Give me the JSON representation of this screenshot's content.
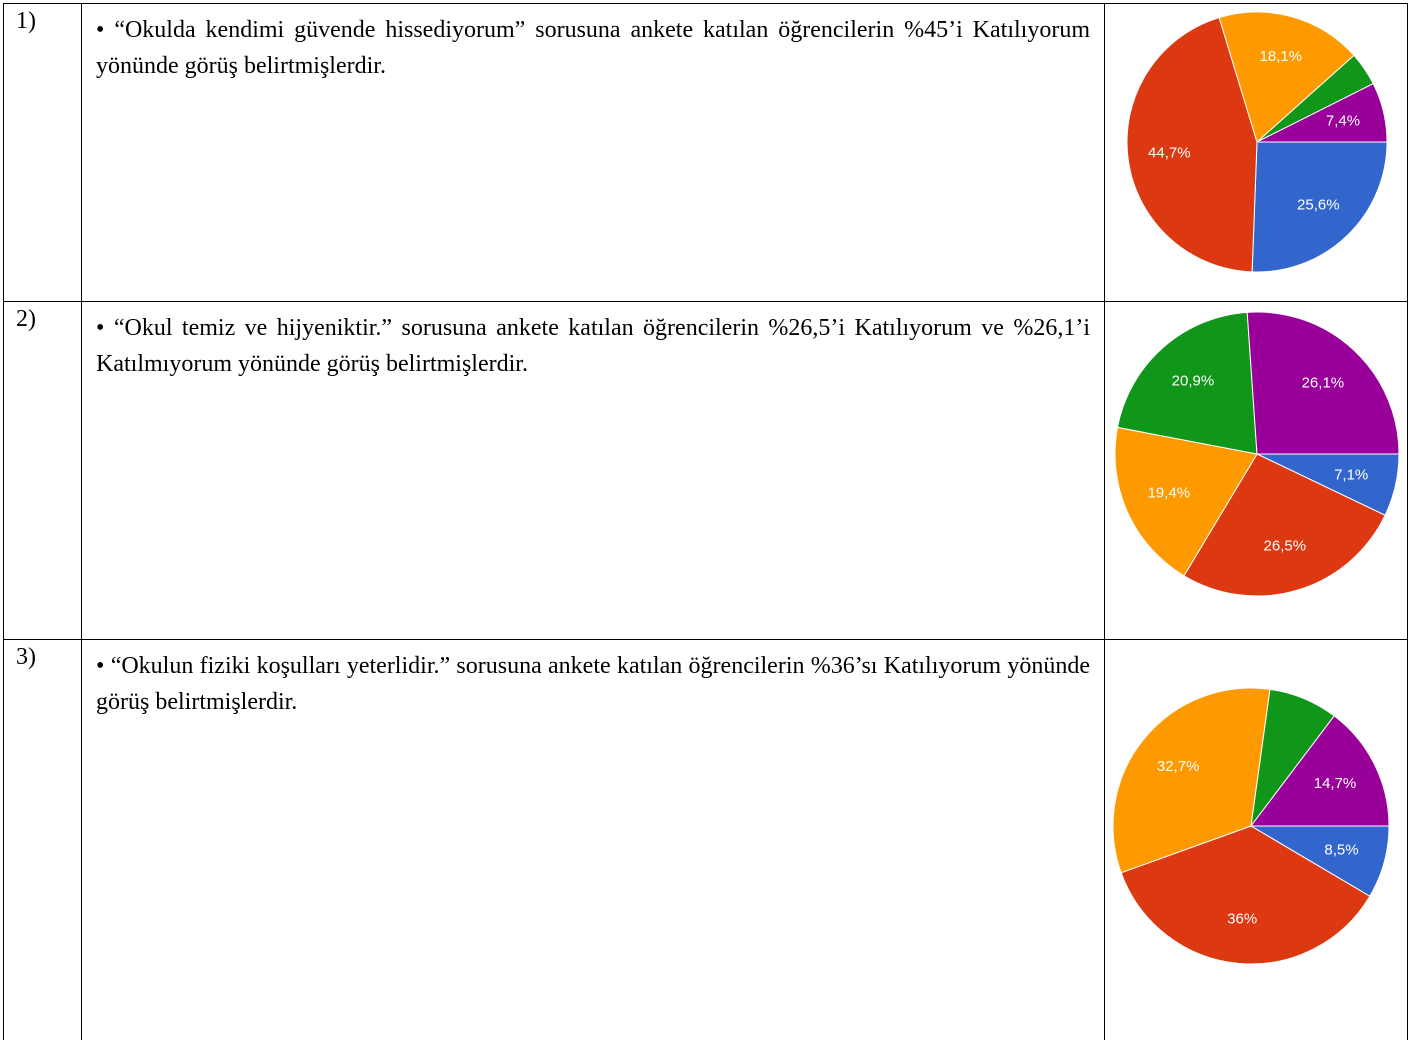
{
  "rows": [
    {
      "number": "1)",
      "text": "• “Okulda kendimi güvende hissediyorum” sorusuna ankete katılan öğrencilerin %45’i Katılıyorum yönünde görüş belirtmişlerdir."
    },
    {
      "number": "2)",
      "text": "• “Okul temiz ve hijyeniktir.” sorusuna ankete katılan öğrencilerin %26,5’i Katılıyorum ve %26,1’i Katılmıyorum yönünde görüş belirtmişlerdir."
    },
    {
      "number": "3)",
      "text": "• “Okulun fiziki koşulları yeterlidir.” sorusuna ankete katılan öğrencilerin %36’sı Katılıyorum yönünde görüş belirtmişlerdir."
    }
  ],
  "chart_data": [
    {
      "type": "pie",
      "values": [
        25.6,
        44.7,
        18.1,
        4.2,
        7.4
      ],
      "value_labels": [
        "25,6%",
        "44,7%",
        "18,1%",
        null,
        "7,4%"
      ],
      "colors": [
        "#3366cc",
        "#dc3912",
        "#ff9900",
        "#109618",
        "#990099"
      ]
    },
    {
      "type": "pie",
      "values": [
        7.1,
        26.5,
        19.4,
        20.9,
        26.1
      ],
      "value_labels": [
        "7,1%",
        "26,5%",
        "19,4%",
        "20,9%",
        "26,1%"
      ],
      "colors": [
        "#3366cc",
        "#dc3912",
        "#ff9900",
        "#109618",
        "#990099"
      ]
    },
    {
      "type": "pie",
      "values": [
        8.5,
        36,
        32.7,
        8.1,
        14.7
      ],
      "value_labels": [
        "8,5%",
        "36%",
        "32,7%",
        null,
        "14,7%"
      ],
      "colors": [
        "#3366cc",
        "#dc3912",
        "#ff9900",
        "#109618",
        "#990099"
      ]
    }
  ]
}
